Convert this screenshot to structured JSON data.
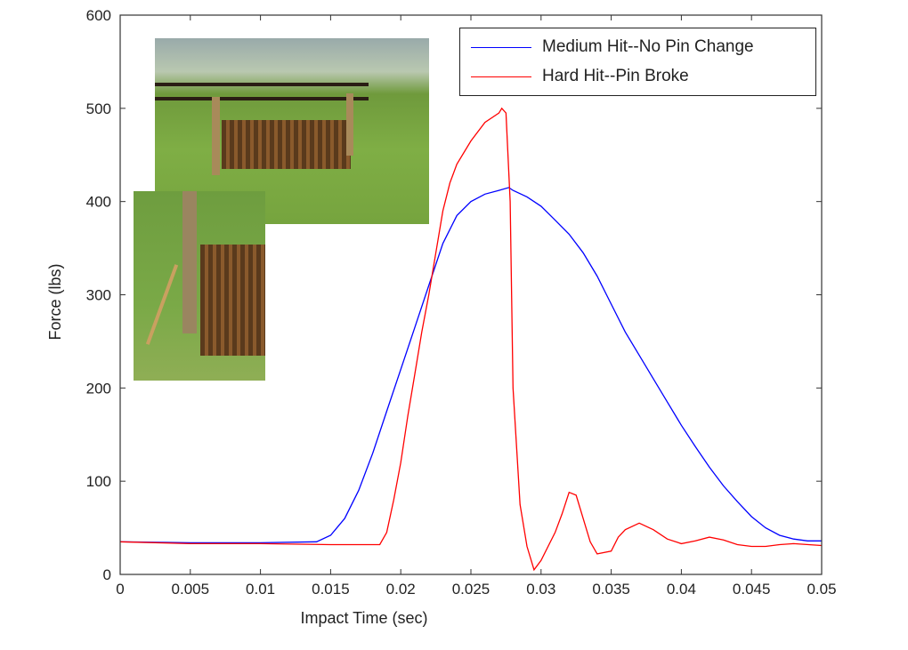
{
  "chart_data": {
    "type": "line",
    "xlabel": "Impact Time (sec)",
    "ylabel": "Force (lbs)",
    "xlim": [
      0,
      0.05
    ],
    "ylim": [
      0,
      600
    ],
    "xticks": [
      "0",
      "0.005",
      "0.01",
      "0.015",
      "0.02",
      "0.025",
      "0.03",
      "0.035",
      "0.04",
      "0.045",
      "0.05"
    ],
    "yticks": [
      "0",
      "100",
      "200",
      "300",
      "400",
      "500",
      "600"
    ],
    "grid": false,
    "legend_position": "top-right",
    "series": [
      {
        "name": "Medium Hit--No Pin Change",
        "color": "#0000ff",
        "x": [
          0,
          0.005,
          0.01,
          0.014,
          0.015,
          0.016,
          0.017,
          0.018,
          0.019,
          0.02,
          0.021,
          0.022,
          0.023,
          0.024,
          0.025,
          0.026,
          0.027,
          0.0277,
          0.028,
          0.029,
          0.03,
          0.031,
          0.032,
          0.033,
          0.034,
          0.035,
          0.036,
          0.037,
          0.038,
          0.039,
          0.04,
          0.041,
          0.042,
          0.043,
          0.044,
          0.045,
          0.046,
          0.047,
          0.048,
          0.049,
          0.05
        ],
        "y": [
          35,
          34,
          34,
          35,
          42,
          60,
          90,
          130,
          175,
          220,
          265,
          310,
          355,
          385,
          400,
          408,
          412,
          415,
          412,
          405,
          395,
          380,
          365,
          345,
          320,
          290,
          260,
          235,
          210,
          185,
          160,
          137,
          115,
          95,
          78,
          62,
          50,
          42,
          38,
          36,
          36
        ]
      },
      {
        "name": "Hard Hit--Pin Broke",
        "color": "#ff0000",
        "x": [
          0,
          0.005,
          0.01,
          0.015,
          0.0185,
          0.019,
          0.0195,
          0.02,
          0.0205,
          0.021,
          0.0215,
          0.022,
          0.0225,
          0.023,
          0.0235,
          0.024,
          0.025,
          0.026,
          0.027,
          0.0272,
          0.0275,
          0.0278,
          0.028,
          0.0285,
          0.029,
          0.0295,
          0.03,
          0.0305,
          0.031,
          0.0315,
          0.032,
          0.0325,
          0.033,
          0.0335,
          0.034,
          0.035,
          0.0355,
          0.036,
          0.037,
          0.038,
          0.039,
          0.04,
          0.041,
          0.042,
          0.043,
          0.044,
          0.045,
          0.046,
          0.047,
          0.048,
          0.05
        ],
        "y": [
          35,
          33,
          33,
          32,
          32,
          45,
          80,
          120,
          170,
          215,
          260,
          300,
          345,
          390,
          420,
          440,
          465,
          485,
          495,
          500,
          495,
          400,
          200,
          75,
          30,
          5,
          15,
          30,
          45,
          65,
          88,
          85,
          60,
          35,
          22,
          25,
          40,
          48,
          55,
          48,
          38,
          33,
          36,
          40,
          37,
          32,
          30,
          30,
          32,
          33,
          31
        ]
      }
    ]
  }
}
